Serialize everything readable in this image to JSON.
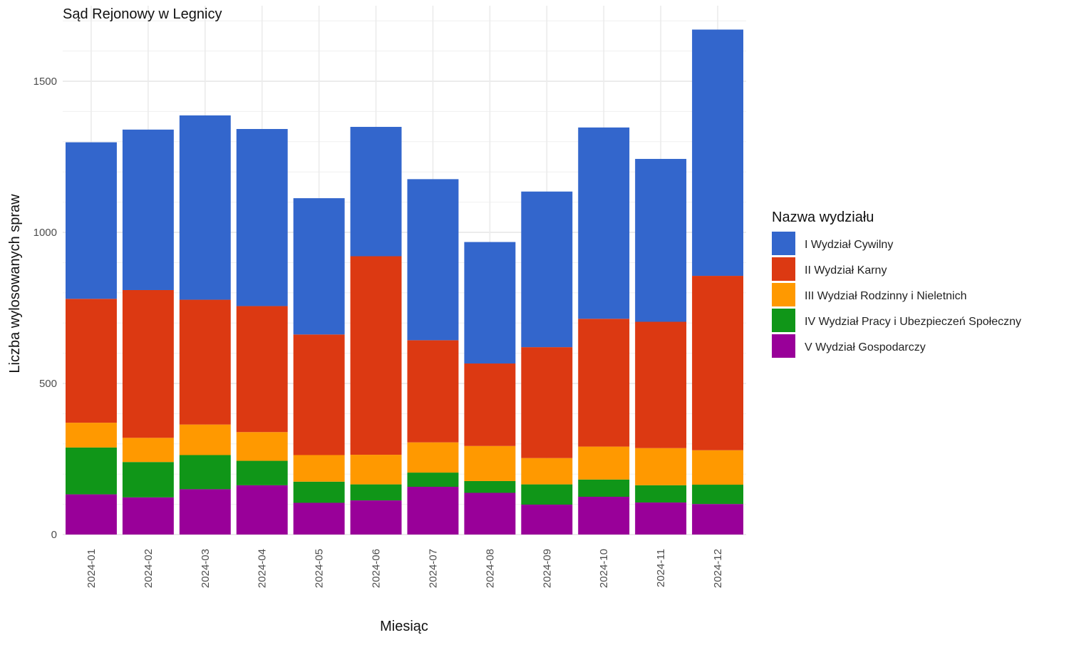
{
  "chart_data": {
    "type": "bar",
    "stacked": true,
    "title": "Sąd Rejonowy w Legnicy",
    "xlabel": "Miesiąc",
    "ylabel": "Liczba wylosowanych spraw",
    "ylim": [
      0,
      1700
    ],
    "yticks": [
      0,
      500,
      1000,
      1500
    ],
    "grid": true,
    "legend_title": "Nazwa wydziału",
    "legend_position": "right",
    "categories": [
      "2024-01",
      "2024-02",
      "2024-03",
      "2024-04",
      "2024-05",
      "2024-06",
      "2024-07",
      "2024-08",
      "2024-09",
      "2024-10",
      "2024-11",
      "2024-12"
    ],
    "series": [
      {
        "name": "V Wydział Gospodarczy",
        "color": "#990099",
        "values": [
          133,
          123,
          150,
          163,
          105,
          113,
          158,
          138,
          99,
          125,
          106,
          101
        ]
      },
      {
        "name": "IV Wydział Pracy i Ubezpieczeń Społeczny",
        "color": "#109618",
        "values": [
          155,
          117,
          113,
          81,
          70,
          53,
          47,
          39,
          67,
          57,
          57,
          64
        ]
      },
      {
        "name": "III Wydział Rodzinny i Nieletnich",
        "color": "#FF9900",
        "values": [
          82,
          80,
          101,
          95,
          88,
          98,
          100,
          116,
          87,
          109,
          123,
          114
        ]
      },
      {
        "name": "II Wydział Karny",
        "color": "#DC3912",
        "values": [
          410,
          489,
          413,
          417,
          399,
          657,
          338,
          273,
          367,
          423,
          418,
          577
        ]
      },
      {
        "name": "I Wydział Cywilny",
        "color": "#3366CC",
        "values": [
          518,
          531,
          610,
          586,
          451,
          428,
          533,
          402,
          515,
          633,
          539,
          815
        ]
      }
    ]
  }
}
